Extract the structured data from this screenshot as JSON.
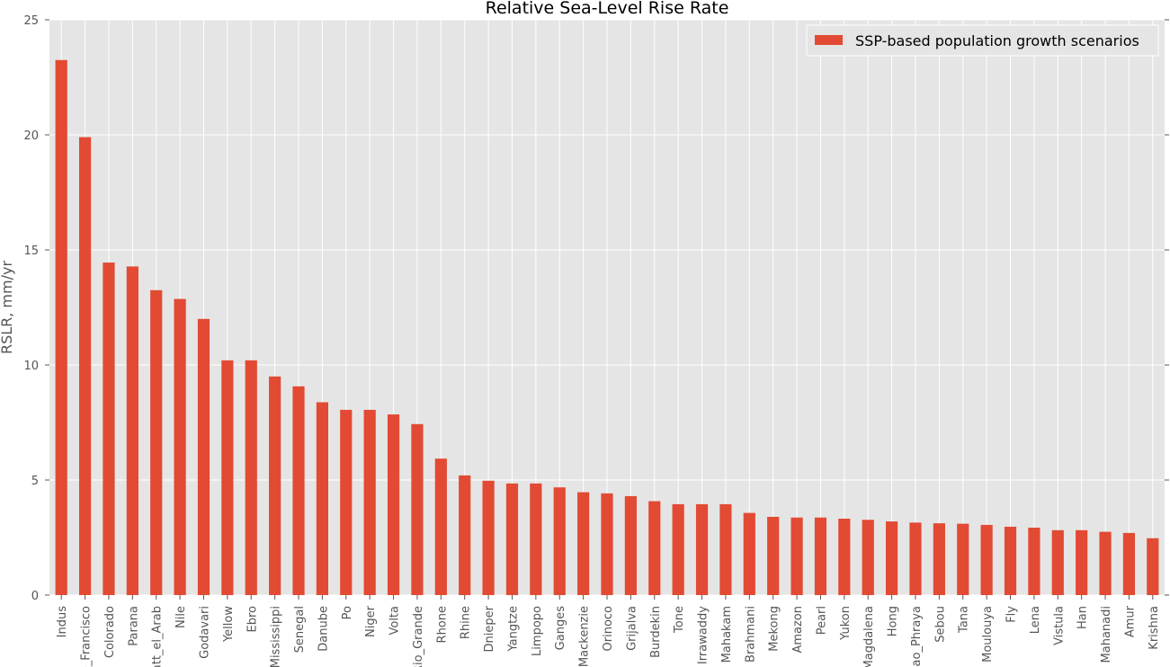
{
  "chart_data": {
    "type": "bar",
    "title": "Relative Sea-Level Rise Rate",
    "xlabel": "",
    "ylabel": "RSLR, mm/yr",
    "ylim": [
      0,
      25
    ],
    "yticks": [
      0,
      5,
      10,
      15,
      20,
      25
    ],
    "grid": true,
    "legend_position": "top-right",
    "colors": {
      "bar": "#e24a33",
      "plot_bg": "#e5e5e5",
      "grid": "#ffffff"
    },
    "categories": [
      "Indus",
      "Sao_Francisco",
      "Colorado",
      "Parana",
      "Shatt_el_Arab",
      "Nile",
      "Godavari",
      "Yellow",
      "Ebro",
      "Mississippi",
      "Senegal",
      "Danube",
      "Po",
      "Niger",
      "Volta",
      "Rio_Grande",
      "Rhone",
      "Rhine",
      "Dnieper",
      "Yangtze",
      "Limpopo",
      "Ganges",
      "Mackenzie",
      "Orinoco",
      "Grijalva",
      "Burdekin",
      "Tone",
      "Irrawaddy",
      "Mahakam",
      "Brahmani",
      "Mekong",
      "Amazon",
      "Pearl",
      "Yukon",
      "Magdalena",
      "Hong",
      "Chao_Phraya",
      "Sebou",
      "Tana",
      "Moulouya",
      "Fly",
      "Lena",
      "Vistula",
      "Han",
      "Mahanadi",
      "Amur",
      "Krishna"
    ],
    "series": [
      {
        "name": "SSP-based population growth scenarios",
        "values": [
          23.25,
          19.9,
          14.45,
          14.28,
          13.25,
          12.87,
          12.0,
          10.2,
          10.2,
          9.5,
          9.07,
          8.38,
          8.05,
          8.05,
          7.85,
          7.43,
          5.93,
          5.2,
          4.97,
          4.85,
          4.85,
          4.68,
          4.47,
          4.42,
          4.3,
          4.08,
          3.95,
          3.95,
          3.95,
          3.57,
          3.4,
          3.37,
          3.37,
          3.32,
          3.27,
          3.2,
          3.15,
          3.12,
          3.1,
          3.05,
          2.97,
          2.93,
          2.82,
          2.82,
          2.75,
          2.7,
          2.47
        ]
      }
    ]
  }
}
